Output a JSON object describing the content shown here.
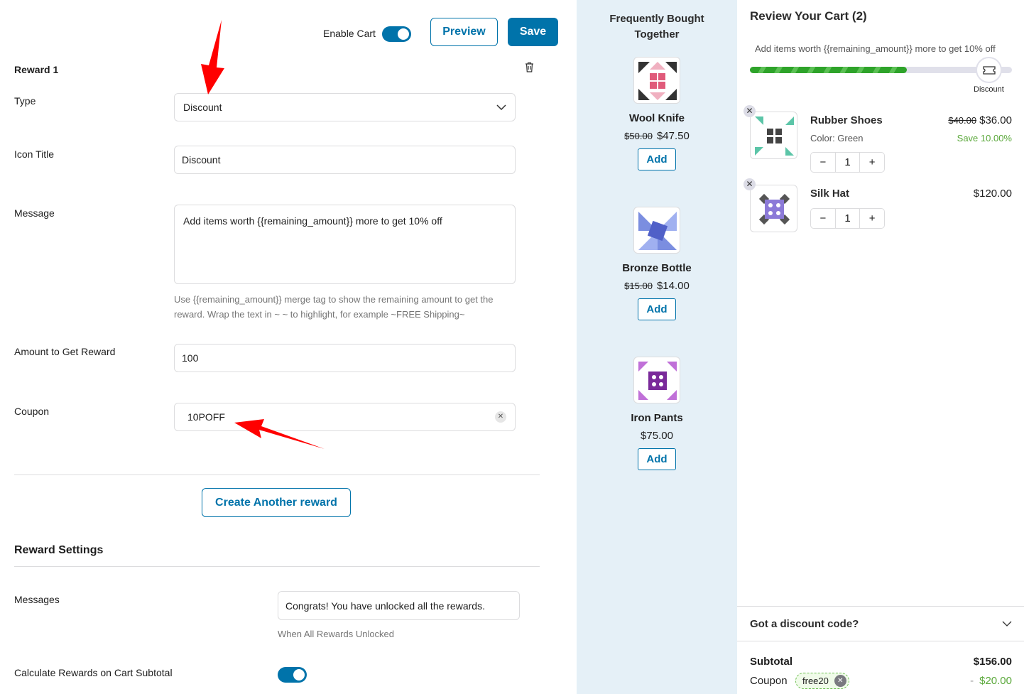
{
  "header": {
    "enable_cart_label": "Enable Cart",
    "enable_cart_on": true,
    "preview_label": "Preview",
    "save_label": "Save"
  },
  "reward": {
    "title": "Reward 1",
    "type_label": "Type",
    "type_value": "Discount",
    "icon_title_label": "Icon Title",
    "icon_title_value": "Discount",
    "message_label": "Message",
    "message_value": "Add items worth {{remaining_amount}} more to get 10% off",
    "message_help": "Use {{remaining_amount}} merge tag to show the remaining amount to get the reward. Wrap the text in ~ ~ to highlight, for example ~FREE Shipping~",
    "amount_label": "Amount to Get Reward",
    "amount_value": "100",
    "coupon_label": "Coupon",
    "coupon_value": "10POFF"
  },
  "create_another_label": "Create Another reward",
  "settings": {
    "title": "Reward Settings",
    "messages_label": "Messages",
    "messages_value": "Congrats! You have unlocked all the rewards.",
    "messages_help": "When All Rewards Unlocked",
    "subtotal_label": "Calculate Rewards on Cart Subtotal",
    "subtotal_on": true
  },
  "fbt": {
    "title": "Frequently Bought Together",
    "add_label": "Add",
    "products": [
      {
        "name": "Wool Knife",
        "old_price": "$50.00",
        "price": "$47.50"
      },
      {
        "name": "Bronze Bottle",
        "old_price": "$15.00",
        "price": "$14.00"
      },
      {
        "name": "Iron Pants",
        "old_price": "",
        "price": "$75.00"
      }
    ]
  },
  "cart": {
    "title": "Review Your Cart (2)",
    "progress_message": "Add items worth {{remaining_amount}} more to get 10% off",
    "progress_percent": 60,
    "milestone_label": "Discount",
    "milestone_icon": "ticket-icon",
    "items": [
      {
        "name": "Rubber Shoes",
        "variant": "Color: Green",
        "old_price": "$40.00",
        "price": "$36.00",
        "save": "Save 10.00%",
        "qty": "1"
      },
      {
        "name": "Silk Hat",
        "variant": "",
        "old_price": "",
        "price": "$120.00",
        "save": "",
        "qty": "1"
      }
    ],
    "discount_toggle": "Got a discount code?",
    "subtotal_label": "Subtotal",
    "subtotal_value": "$156.00",
    "coupon_label": "Coupon",
    "coupon_code": "free20",
    "coupon_value": "$20.00",
    "coupon_minus": "-"
  },
  "colors": {
    "accent": "#0073aa",
    "progress": "#3aaa35",
    "save": "#5aa83a",
    "annotation": "#ff0000"
  }
}
